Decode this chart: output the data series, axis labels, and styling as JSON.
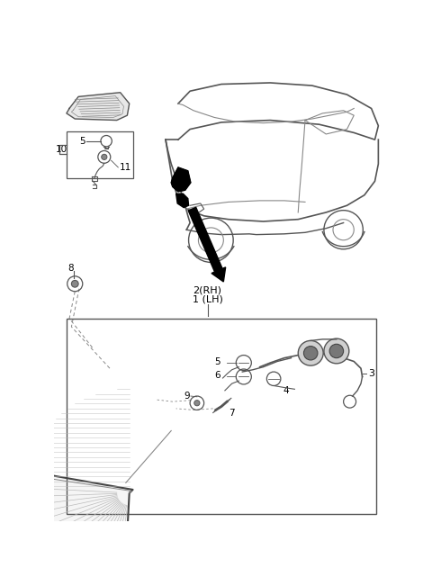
{
  "background_color": "#ffffff",
  "fig_width": 4.8,
  "fig_height": 6.51,
  "dpi": 100,
  "line_color": "#555555",
  "light_gray": "#cccccc",
  "mid_gray": "#888888",
  "dark_gray": "#444444"
}
